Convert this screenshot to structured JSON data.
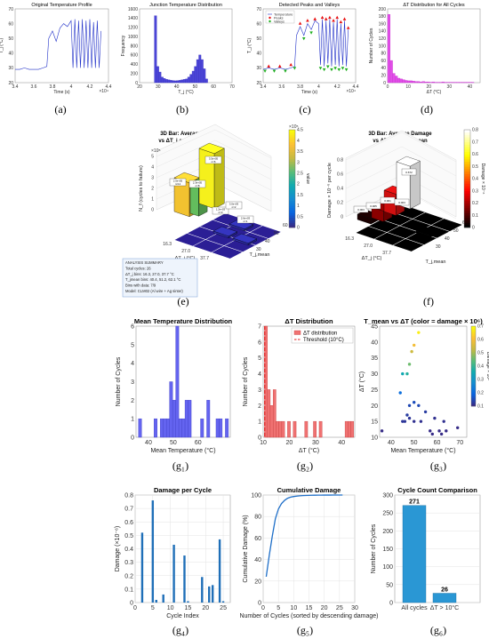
{
  "captions": [
    "(a)",
    "(b)",
    "(c)",
    "(d)",
    "(e)",
    "(f)",
    "(g₁)",
    "(g₂)",
    "(g₃)",
    "(g₄)",
    "(g₅)",
    "(g₆)"
  ],
  "chart_data": [
    {
      "id": "a",
      "type": "line",
      "title": "Original Temperature Profile",
      "xlabel": "Time (s)",
      "ylabel": "T_j (°C)",
      "xlim": [
        3.4,
        4.4
      ],
      "ylim": [
        20,
        70
      ],
      "x_ticks": [
        "3.4",
        "3.6",
        "3.8",
        "4",
        "4.2",
        "4.4"
      ],
      "y_ticks": [
        "20",
        "30",
        "40",
        "50",
        "60",
        "70"
      ],
      "x_exponent": "×10⁴",
      "x": [
        3.4,
        3.45,
        3.5,
        3.55,
        3.6,
        3.65,
        3.7,
        3.74,
        3.76,
        3.8,
        3.84,
        3.88,
        3.92,
        3.96,
        4.0,
        4.02,
        4.04,
        4.06,
        4.08,
        4.1,
        4.12,
        4.14,
        4.16,
        4.18,
        4.2,
        4.22,
        4.24,
        4.26,
        4.28,
        4.3,
        4.32
      ],
      "y": [
        29,
        29,
        30,
        29,
        29,
        29,
        30,
        31,
        50,
        55,
        48,
        57,
        60,
        58,
        62,
        30,
        63,
        30,
        62,
        30,
        63,
        30,
        62,
        30,
        63,
        30,
        61,
        30,
        62,
        30,
        55
      ]
    },
    {
      "id": "b",
      "type": "bar",
      "title": "Junction Temperature Distribution",
      "xlabel": "T_j (°C)",
      "ylabel": "Frequency",
      "xlim": [
        20,
        70
      ],
      "ylim": [
        0,
        1600
      ],
      "x_ticks": [
        "20",
        "30",
        "40",
        "50",
        "60",
        "70"
      ],
      "y_ticks": [
        "0",
        "200",
        "400",
        "600",
        "800",
        "1000",
        "1200",
        "1400",
        "1600"
      ],
      "bin_start": 28,
      "bin_width": 1.2,
      "values": [
        1450,
        350,
        230,
        120,
        90,
        70,
        60,
        50,
        45,
        40,
        45,
        50,
        60,
        70,
        80,
        120,
        180,
        250,
        350,
        500,
        600,
        500,
        300,
        80
      ]
    },
    {
      "id": "c",
      "type": "line",
      "title": "Detected Peaks and Valleys",
      "xlabel": "Time (s)",
      "ylabel": "T_j (°C)",
      "xlim": [
        3.4,
        4.4
      ],
      "ylim": [
        20,
        70
      ],
      "x_ticks": [
        "3.4",
        "3.6",
        "3.8",
        "4",
        "4.2",
        "4.4"
      ],
      "y_ticks": [
        "20",
        "30",
        "40",
        "50",
        "60",
        "70"
      ],
      "x_exponent": "×10⁴",
      "legend": [
        "Temperature",
        "Peaks",
        "Valleys"
      ],
      "x": [
        3.4,
        3.46,
        3.52,
        3.58,
        3.64,
        3.7,
        3.74,
        3.76,
        3.8,
        3.84,
        3.88,
        3.92,
        3.96,
        4.0,
        4.02,
        4.04,
        4.06,
        4.08,
        4.1,
        4.12,
        4.14,
        4.16,
        4.18,
        4.2,
        4.22,
        4.24,
        4.26,
        4.28,
        4.3,
        4.32
      ],
      "y": [
        29,
        30,
        29,
        30,
        29,
        30,
        31,
        52,
        58,
        52,
        60,
        56,
        62,
        60,
        32,
        63,
        31,
        62,
        33,
        63,
        31,
        61,
        32,
        63,
        31,
        60,
        32,
        62,
        31,
        56
      ],
      "peaks_x": [
        3.46,
        3.58,
        3.7,
        3.8,
        3.88,
        3.96,
        4.04,
        4.08,
        4.12,
        4.16,
        4.2,
        4.24,
        4.28,
        4.32
      ],
      "peaks_y": [
        31,
        31,
        32,
        60,
        62,
        63,
        64,
        63,
        64,
        62,
        64,
        61,
        63,
        57
      ],
      "valleys_x": [
        3.42,
        3.52,
        3.64,
        3.74,
        3.84,
        3.92,
        4.02,
        4.06,
        4.1,
        4.14,
        4.18,
        4.22,
        4.26,
        4.3
      ],
      "valleys_y": [
        28,
        28,
        28,
        30,
        50,
        54,
        30,
        29,
        31,
        29,
        30,
        29,
        30,
        29
      ]
    },
    {
      "id": "d",
      "type": "bar",
      "title": "ΔT Distribution for All Cycles",
      "xlabel": "ΔT (°C)",
      "ylabel": "Number of Cycles",
      "xlim": [
        0,
        45
      ],
      "ylim": [
        0,
        200
      ],
      "x_ticks": [
        "0",
        "10",
        "20",
        "30",
        "40"
      ],
      "y_ticks": [
        "0",
        "20",
        "40",
        "60",
        "80",
        "100",
        "120",
        "140",
        "160",
        "180",
        "200"
      ],
      "bin_start": 0,
      "bin_width": 1.2,
      "values": [
        185,
        60,
        25,
        18,
        12,
        10,
        8,
        6,
        5,
        5,
        4,
        3,
        3,
        2,
        3,
        2,
        2,
        1,
        2,
        1,
        1,
        1,
        2,
        1,
        1,
        1,
        1,
        1,
        1,
        1,
        1,
        1,
        1,
        1,
        1
      ]
    },
    {
      "id": "e",
      "type": "bar3d",
      "title": "3D Bar: Average N_f vs ΔT_j and T_j,mean",
      "zlabel": "N_f (cycles to failure)",
      "xlabel": "ΔT_j (°C)",
      "ylabel": "T_j,mean",
      "x_ticks": [
        "16.3",
        "27.0",
        "37.7"
      ],
      "y_ticks": [
        "30",
        "40",
        "50",
        "60"
      ],
      "z_ticks": [
        "0",
        "1",
        "2",
        "3",
        "4",
        "5"
      ],
      "z_exponent": "×10⁵",
      "colorbar_ticks": [
        "0",
        "0.5",
        "1",
        "1.5",
        "2",
        "2.5",
        "3",
        "3.5",
        "4",
        "4.5"
      ],
      "colorbar_label": "value",
      "colorbar_exponent": "×10⁵",
      "bar_labels": [
        "2.5e+05 n=12",
        "2.3e+05 n=8",
        "3.5e+05 n=6",
        "1.2e+03 n=3",
        "3.0e+03 n=2",
        "2.6e+03 n=1"
      ],
      "summary": [
        "ANALYSIS SUMMARY",
        "Total cycles: 26",
        "ΔT_j bins: 16.3, 27.0, 37.7 °C",
        "T_jmean bins: 40.4, 51.2, 62.1 °C",
        "Bins with data: 7/9",
        "Model: CLM02 (Al wire + Ag sinter)"
      ]
    },
    {
      "id": "f",
      "type": "bar3d",
      "title": "3D Bar: Average Damage vs ΔT_j and T_j,mean",
      "zlabel": "Damage × 10⁻⁶ per cycle",
      "xlabel": "ΔT_j (°C)",
      "ylabel": "T_j,mean",
      "x_ticks": [
        "16.3",
        "27.0",
        "37.7"
      ],
      "y_ticks": [
        "30",
        "40",
        "50",
        "60"
      ],
      "z_ticks": [
        "0",
        "0.2",
        "0.4",
        "0.6",
        "0.8"
      ],
      "colorbar_ticks": [
        "0",
        "0.1",
        "0.2",
        "0.3",
        "0.4",
        "0.5",
        "0.6",
        "0.7",
        "0.8"
      ],
      "colorbar_label": "Damage × 10⁻⁶",
      "bar_labels": [
        "0.003",
        "0.005",
        "0.001",
        "0.003",
        "0.672"
      ]
    },
    {
      "id": "g1",
      "type": "bar",
      "title": "Mean Temperature Distribution",
      "xlabel": "Mean Temperature (°C)",
      "ylabel": "Number of Cycles",
      "xlim": [
        35,
        73
      ],
      "ylim": [
        0,
        6
      ],
      "x_ticks": [
        "40",
        "50",
        "60"
      ],
      "x_tick_values": [
        40,
        50,
        60
      ],
      "y_ticks": [
        "0",
        "1",
        "2",
        "3",
        "4",
        "5",
        "6"
      ],
      "bin_start": 36,
      "bin_width": 1.25,
      "values": [
        1,
        0,
        0,
        0,
        0,
        1,
        0,
        1,
        1,
        1,
        3,
        2,
        6,
        1,
        1,
        2,
        2,
        0,
        0,
        0,
        1,
        0,
        2,
        0,
        0,
        1,
        1,
        0,
        1
      ]
    },
    {
      "id": "g2",
      "type": "bar",
      "title": "ΔT Distribution",
      "xlabel": "ΔT (°C)",
      "ylabel": "Number of Cycles",
      "xlim": [
        10,
        45
      ],
      "ylim": [
        0,
        7
      ],
      "x_ticks": [
        "10",
        "20",
        "30",
        "40"
      ],
      "x_tick_values": [
        10,
        20,
        30,
        40
      ],
      "y_ticks": [
        "0",
        "1",
        "2",
        "3",
        "4",
        "5",
        "6",
        "7"
      ],
      "legend": [
        "ΔT distribution",
        "Threshold (10°C)"
      ],
      "threshold": 10.6,
      "bin_start": 10.5,
      "bin_width": 1.1,
      "values": [
        7,
        3,
        2,
        3,
        1,
        1,
        1,
        0,
        1,
        0,
        1,
        0,
        0,
        0,
        1,
        0,
        0,
        1,
        0,
        1,
        0,
        0,
        0,
        0,
        0,
        0,
        0,
        0,
        1,
        1,
        1
      ]
    },
    {
      "id": "g3",
      "type": "scatter",
      "title": "T_mean vs ΔT (color = damage × 10⁶)",
      "xlabel": "Mean Temperature (°C)",
      "ylabel": "ΔT (°C)",
      "xlim": [
        35,
        73
      ],
      "ylim": [
        10,
        45
      ],
      "x_ticks": [
        "40",
        "50",
        "60",
        "70"
      ],
      "x_tick_values": [
        40,
        50,
        60,
        70
      ],
      "y_ticks": [
        "10",
        "15",
        "20",
        "25",
        "30",
        "35",
        "40",
        "45"
      ],
      "y_tick_values": [
        10,
        15,
        20,
        25,
        30,
        35,
        40,
        45
      ],
      "colorbar_ticks": [
        "0.1",
        "0.2",
        "0.3",
        "0.4",
        "0.5",
        "0.6",
        "0.7"
      ],
      "colorbar_label": "Damage × 10⁶",
      "points": [
        [
          52,
          43,
          0.72
        ],
        [
          50,
          39,
          0.62
        ],
        [
          49,
          37,
          0.55
        ],
        [
          48,
          33,
          0.45
        ],
        [
          47,
          30,
          0.36
        ],
        [
          45,
          30,
          0.32
        ],
        [
          44,
          24,
          0.15
        ],
        [
          50,
          21,
          0.08
        ],
        [
          48,
          20,
          0.07
        ],
        [
          52,
          20,
          0.07
        ],
        [
          47,
          17,
          0.05
        ],
        [
          55,
          18,
          0.05
        ],
        [
          48,
          16,
          0.04
        ],
        [
          45,
          15,
          0.04
        ],
        [
          46,
          15,
          0.04
        ],
        [
          50,
          15,
          0.03
        ],
        [
          53,
          15,
          0.03
        ],
        [
          59,
          16,
          0.03
        ],
        [
          63,
          15,
          0.03
        ],
        [
          61,
          12,
          0.02
        ],
        [
          57,
          12,
          0.02
        ],
        [
          36,
          12,
          0.02
        ],
        [
          58,
          11,
          0.01
        ],
        [
          62,
          11,
          0.01
        ],
        [
          64,
          12,
          0.02
        ],
        [
          69,
          13,
          0.02
        ]
      ]
    },
    {
      "id": "g4",
      "type": "bar",
      "title": "Damage per Cycle",
      "xlabel": "Cycle Index",
      "ylabel": "Damage (×10⁻⁶)",
      "xlim": [
        0,
        27
      ],
      "ylim": [
        0,
        0.8
      ],
      "x_ticks": [
        "0",
        "5",
        "10",
        "15",
        "20",
        "25"
      ],
      "x_tick_values": [
        0,
        5,
        10,
        15,
        20,
        25
      ],
      "y_ticks": [
        "0",
        "0.1",
        "0.2",
        "0.3",
        "0.4",
        "0.5",
        "0.6",
        "0.7",
        "0.8"
      ],
      "categories": [
        1,
        2,
        3,
        4,
        5,
        6,
        7,
        8,
        9,
        10,
        11,
        12,
        13,
        14,
        15,
        16,
        17,
        18,
        19,
        20,
        21,
        22,
        23,
        24,
        25,
        26
      ],
      "values": [
        0,
        0.52,
        0,
        0,
        0.76,
        0.02,
        0,
        0.06,
        0,
        0,
        0.43,
        0,
        0,
        0.35,
        0.01,
        0,
        0,
        0,
        0.19,
        0,
        0.12,
        0.13,
        0,
        0.47,
        0.01,
        0
      ]
    },
    {
      "id": "g5",
      "type": "line",
      "title": "Cumulative Damage",
      "xlabel": "Number of Cycles (sorted by descending damage)",
      "ylabel": "Cumulative Damage (%)",
      "xlim": [
        0,
        30
      ],
      "ylim": [
        0,
        100
      ],
      "x_ticks": [
        "0",
        "5",
        "10",
        "15",
        "20",
        "25",
        "30"
      ],
      "x_tick_values": [
        0,
        5,
        10,
        15,
        20,
        25,
        30
      ],
      "y_ticks": [
        "0",
        "20",
        "40",
        "60",
        "80",
        "100"
      ],
      "y_tick_values": [
        0,
        20,
        40,
        60,
        80,
        100
      ],
      "x": [
        1,
        2,
        3,
        4,
        5,
        6,
        7,
        8,
        9,
        10,
        11,
        12,
        13,
        14,
        15,
        16,
        17,
        18,
        19,
        20,
        21,
        22,
        23,
        24,
        25,
        26
      ],
      "y": [
        24,
        44,
        62,
        78,
        87,
        92,
        95,
        97,
        98,
        98.6,
        99,
        99.3,
        99.5,
        99.6,
        99.7,
        99.8,
        99.85,
        99.9,
        99.92,
        99.94,
        99.96,
        99.97,
        99.98,
        99.99,
        100,
        100
      ]
    },
    {
      "id": "g6",
      "type": "bar",
      "title": "Cycle Count Comparison",
      "xlabel": "",
      "ylabel": "Number of Cycles",
      "ylim": [
        0,
        300
      ],
      "y_ticks": [
        "0",
        "50",
        "100",
        "150",
        "200",
        "250",
        "300"
      ],
      "y_tick_values": [
        0,
        50,
        100,
        150,
        200,
        250,
        300
      ],
      "categories": [
        "All cycles",
        "ΔT > 10°C"
      ],
      "values": [
        271,
        26
      ],
      "value_labels": [
        "271",
        "26"
      ]
    }
  ]
}
